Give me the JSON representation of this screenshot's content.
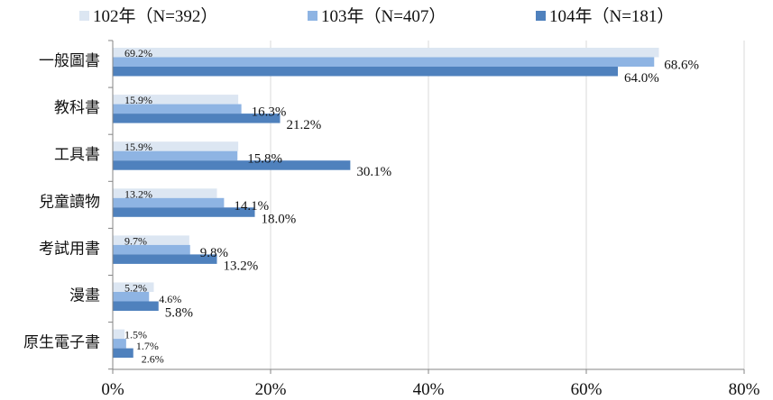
{
  "chart_data": {
    "type": "bar",
    "orientation": "horizontal",
    "categories": [
      "一般圖書",
      "教科書",
      "工具書",
      "兒童讀物",
      "考試用書",
      "漫畫",
      "原生電子書"
    ],
    "series": [
      {
        "name": "102年（N=392）",
        "color": "#dce6f2",
        "values": [
          69.2,
          15.9,
          15.9,
          13.2,
          9.7,
          5.2,
          1.5
        ]
      },
      {
        "name": "103年（N=407）",
        "color": "#8eb4e3",
        "values": [
          68.6,
          16.3,
          15.8,
          14.1,
          9.8,
          4.6,
          1.7
        ]
      },
      {
        "name": "104年（N=181）",
        "color": "#4f81bd",
        "values": [
          64.0,
          21.2,
          30.1,
          18.0,
          13.2,
          5.8,
          2.6
        ]
      }
    ],
    "xlim": [
      0,
      80
    ],
    "xticks": [
      0,
      20,
      40,
      60,
      80
    ],
    "tick_suffix": "%",
    "value_suffix": "%",
    "grid": true,
    "legend_position": "top"
  }
}
